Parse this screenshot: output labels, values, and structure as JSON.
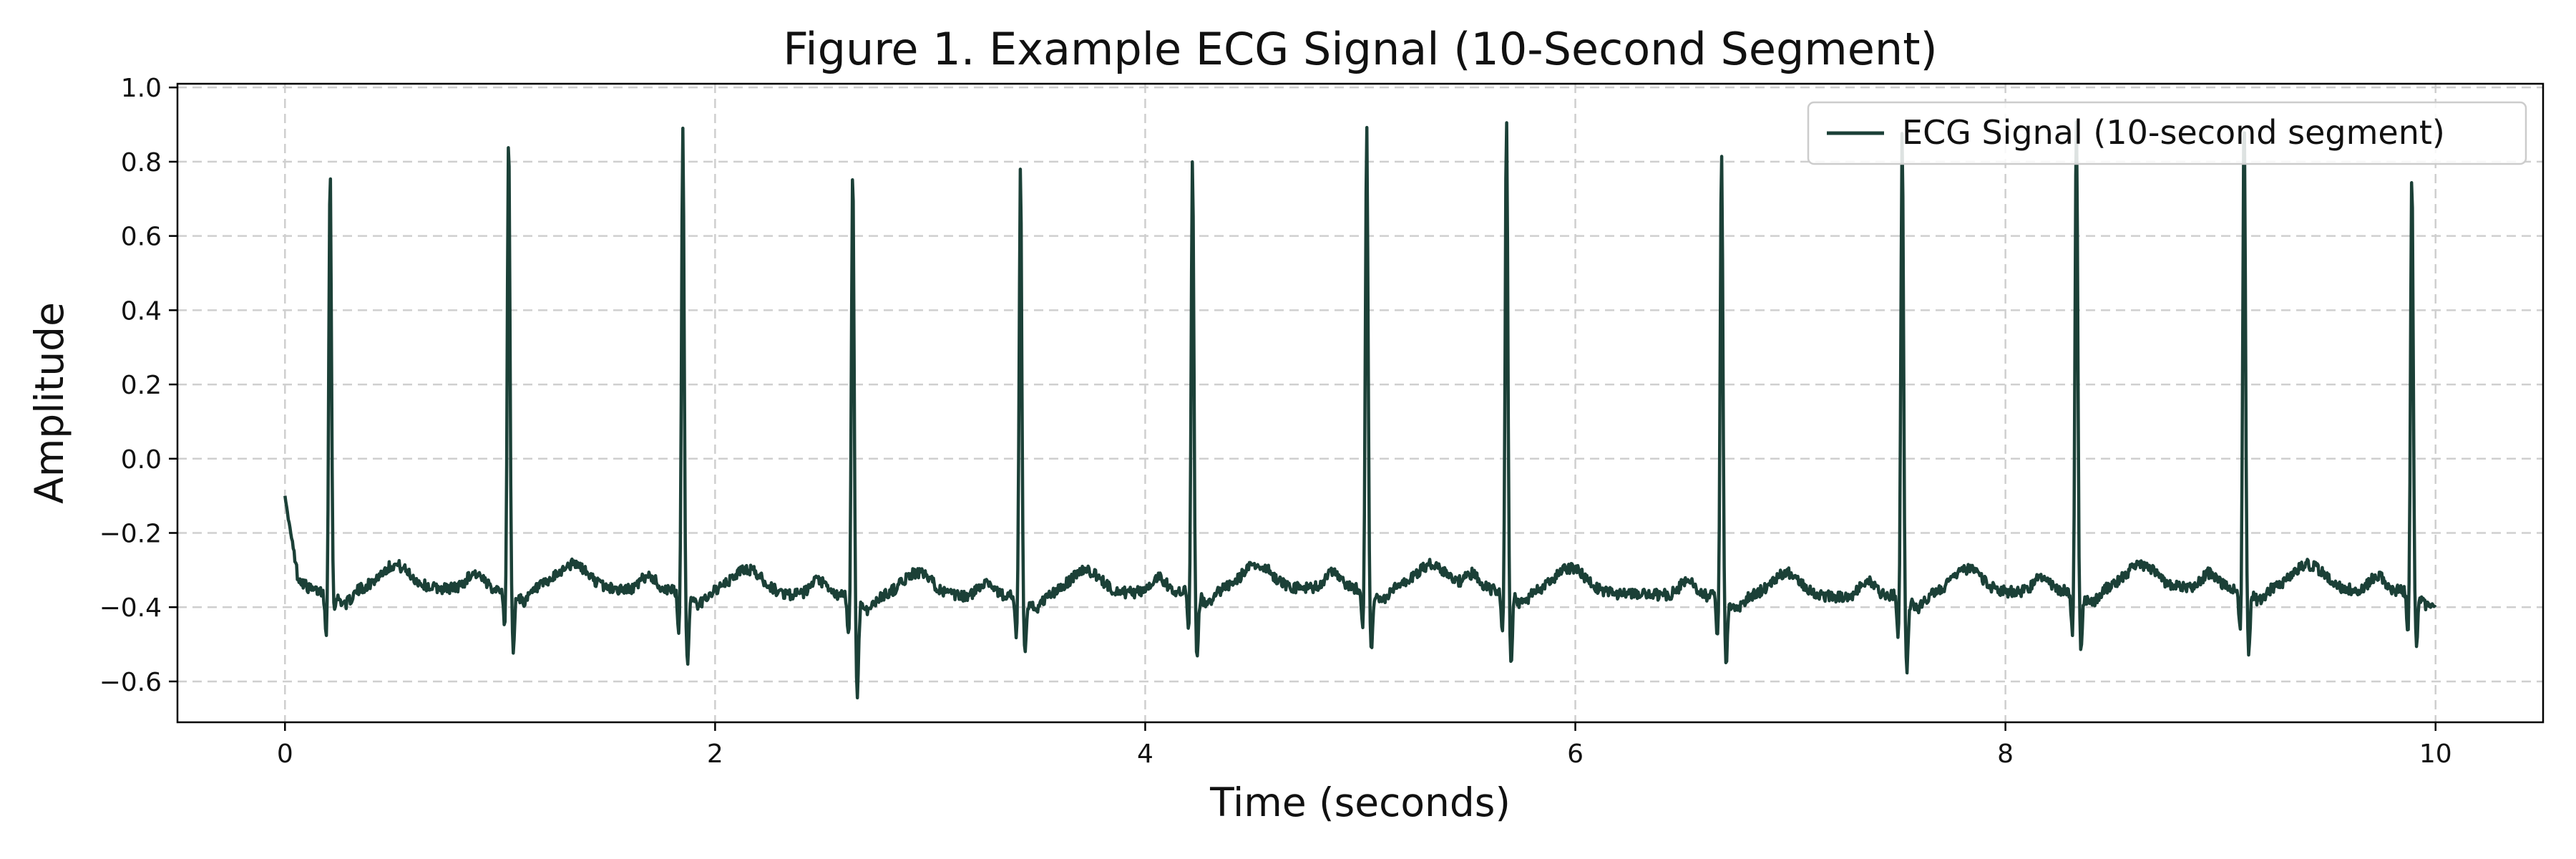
{
  "chart_data": {
    "type": "line",
    "title": "Figure 1. Example ECG Signal (10-Second Segment)",
    "xlabel": "Time (seconds)",
    "ylabel": "Amplitude",
    "xlim": [
      -0.5,
      10.5
    ],
    "ylim": [
      -0.71,
      1.01
    ],
    "xticks": [
      0,
      2,
      4,
      6,
      8,
      10
    ],
    "xtick_labels": [
      "0",
      "2",
      "4",
      "6",
      "8",
      "10"
    ],
    "yticks": [
      1.0,
      0.8,
      0.6,
      0.4,
      0.2,
      0.0,
      -0.2,
      -0.4,
      -0.6
    ],
    "ytick_labels": [
      "1.0",
      "0.8",
      "0.6",
      "0.4",
      "0.2",
      "0.0",
      "−0.2",
      "−0.4",
      "−0.6"
    ],
    "grid": true,
    "legend_position": "top-right",
    "color": "#1b4037",
    "series": [
      {
        "name": "ECG Signal (10-second segment)",
        "r_peaks": [
          {
            "t": 0.21,
            "amp": 0.78,
            "s": -0.4
          },
          {
            "t": 1.04,
            "amp": 0.88,
            "s": -0.52
          },
          {
            "t": 1.85,
            "amp": 0.89,
            "s": -0.55
          },
          {
            "t": 2.64,
            "amp": 0.8,
            "s": -0.63
          },
          {
            "t": 3.42,
            "amp": 0.79,
            "s": -0.52
          },
          {
            "t": 4.22,
            "amp": 0.8,
            "s": -0.54
          },
          {
            "t": 5.03,
            "amp": 0.88,
            "s": -0.53
          },
          {
            "t": 5.68,
            "amp": 0.9,
            "s": -0.55
          },
          {
            "t": 6.68,
            "amp": 0.85,
            "s": -0.55
          },
          {
            "t": 7.52,
            "amp": 0.89,
            "s": -0.56
          },
          {
            "t": 8.33,
            "amp": 0.93,
            "s": -0.51
          },
          {
            "t": 9.11,
            "amp": 0.92,
            "s": -0.53
          },
          {
            "t": 9.89,
            "amp": 0.77,
            "s": -0.49
          }
        ],
        "start": -0.1,
        "baseline": -0.36,
        "end": -0.4
      }
    ]
  }
}
